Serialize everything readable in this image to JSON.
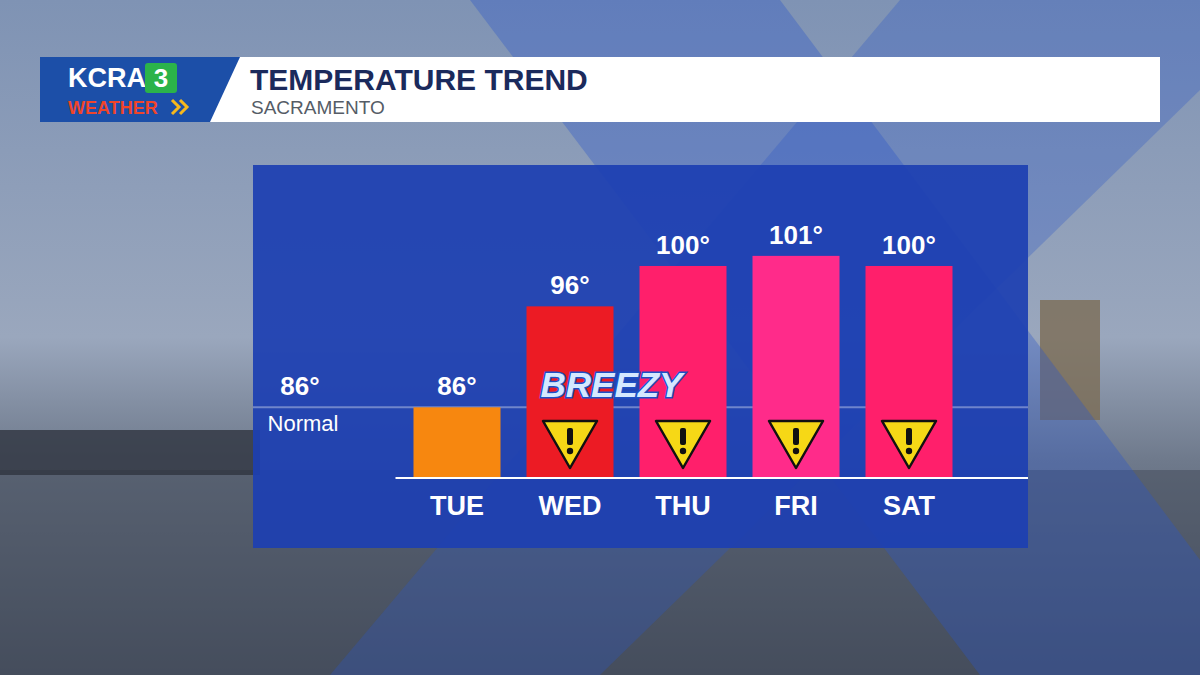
{
  "header": {
    "logo": "KCRA",
    "channel": "3",
    "brand": "WEATHER"
  },
  "chart_data": {
    "type": "bar",
    "title": "TEMPERATURE TREND",
    "subtitle": "SACRAMENTO",
    "categories": [
      "TUE",
      "WED",
      "THU",
      "FRI",
      "SAT"
    ],
    "values": [
      86,
      96,
      100,
      101,
      100
    ],
    "value_labels": [
      "86°",
      "96°",
      "100°",
      "101°",
      "100°"
    ],
    "colors": [
      "#f7870f",
      "#ec1b24",
      "#ff1f6b",
      "#ff2b8a",
      "#ff1f6b"
    ],
    "ylim": [
      79,
      110
    ],
    "tick_labels": "x",
    "data_labels": true,
    "reference": {
      "value": 86,
      "value_label": "86°",
      "label": "Normal"
    },
    "annotations": [
      {
        "text": "BREEZY",
        "category": "WED"
      }
    ],
    "alerts": [
      false,
      true,
      true,
      true,
      true
    ]
  }
}
